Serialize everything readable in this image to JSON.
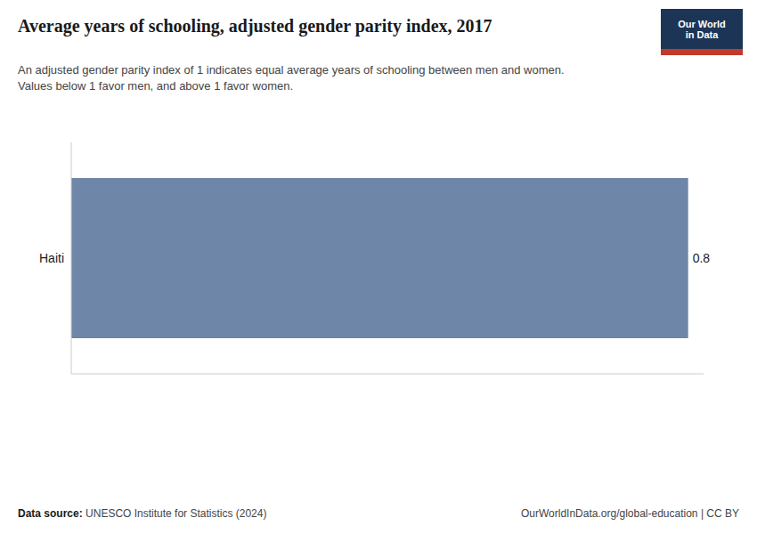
{
  "chart_data": {
    "type": "bar",
    "orientation": "horizontal",
    "title": "Average years of schooling, adjusted gender parity index, 2017",
    "subtitle": "An adjusted gender parity index of 1 indicates equal average years of schooling between men and women.\nValues below 1 favor men, and above 1 favor women.",
    "categories": [
      "Haiti"
    ],
    "values": [
      0.8
    ],
    "color": "#6e86a8",
    "xlim": [
      0,
      0.82
    ],
    "tick_labels": "y",
    "data_labels": true,
    "annotations": [
      "Data source:",
      "UNESCO Institute for Statistics (2024)",
      "OurWorldInData.org/global-education | CC BY",
      "Our World\nin Data"
    ]
  }
}
